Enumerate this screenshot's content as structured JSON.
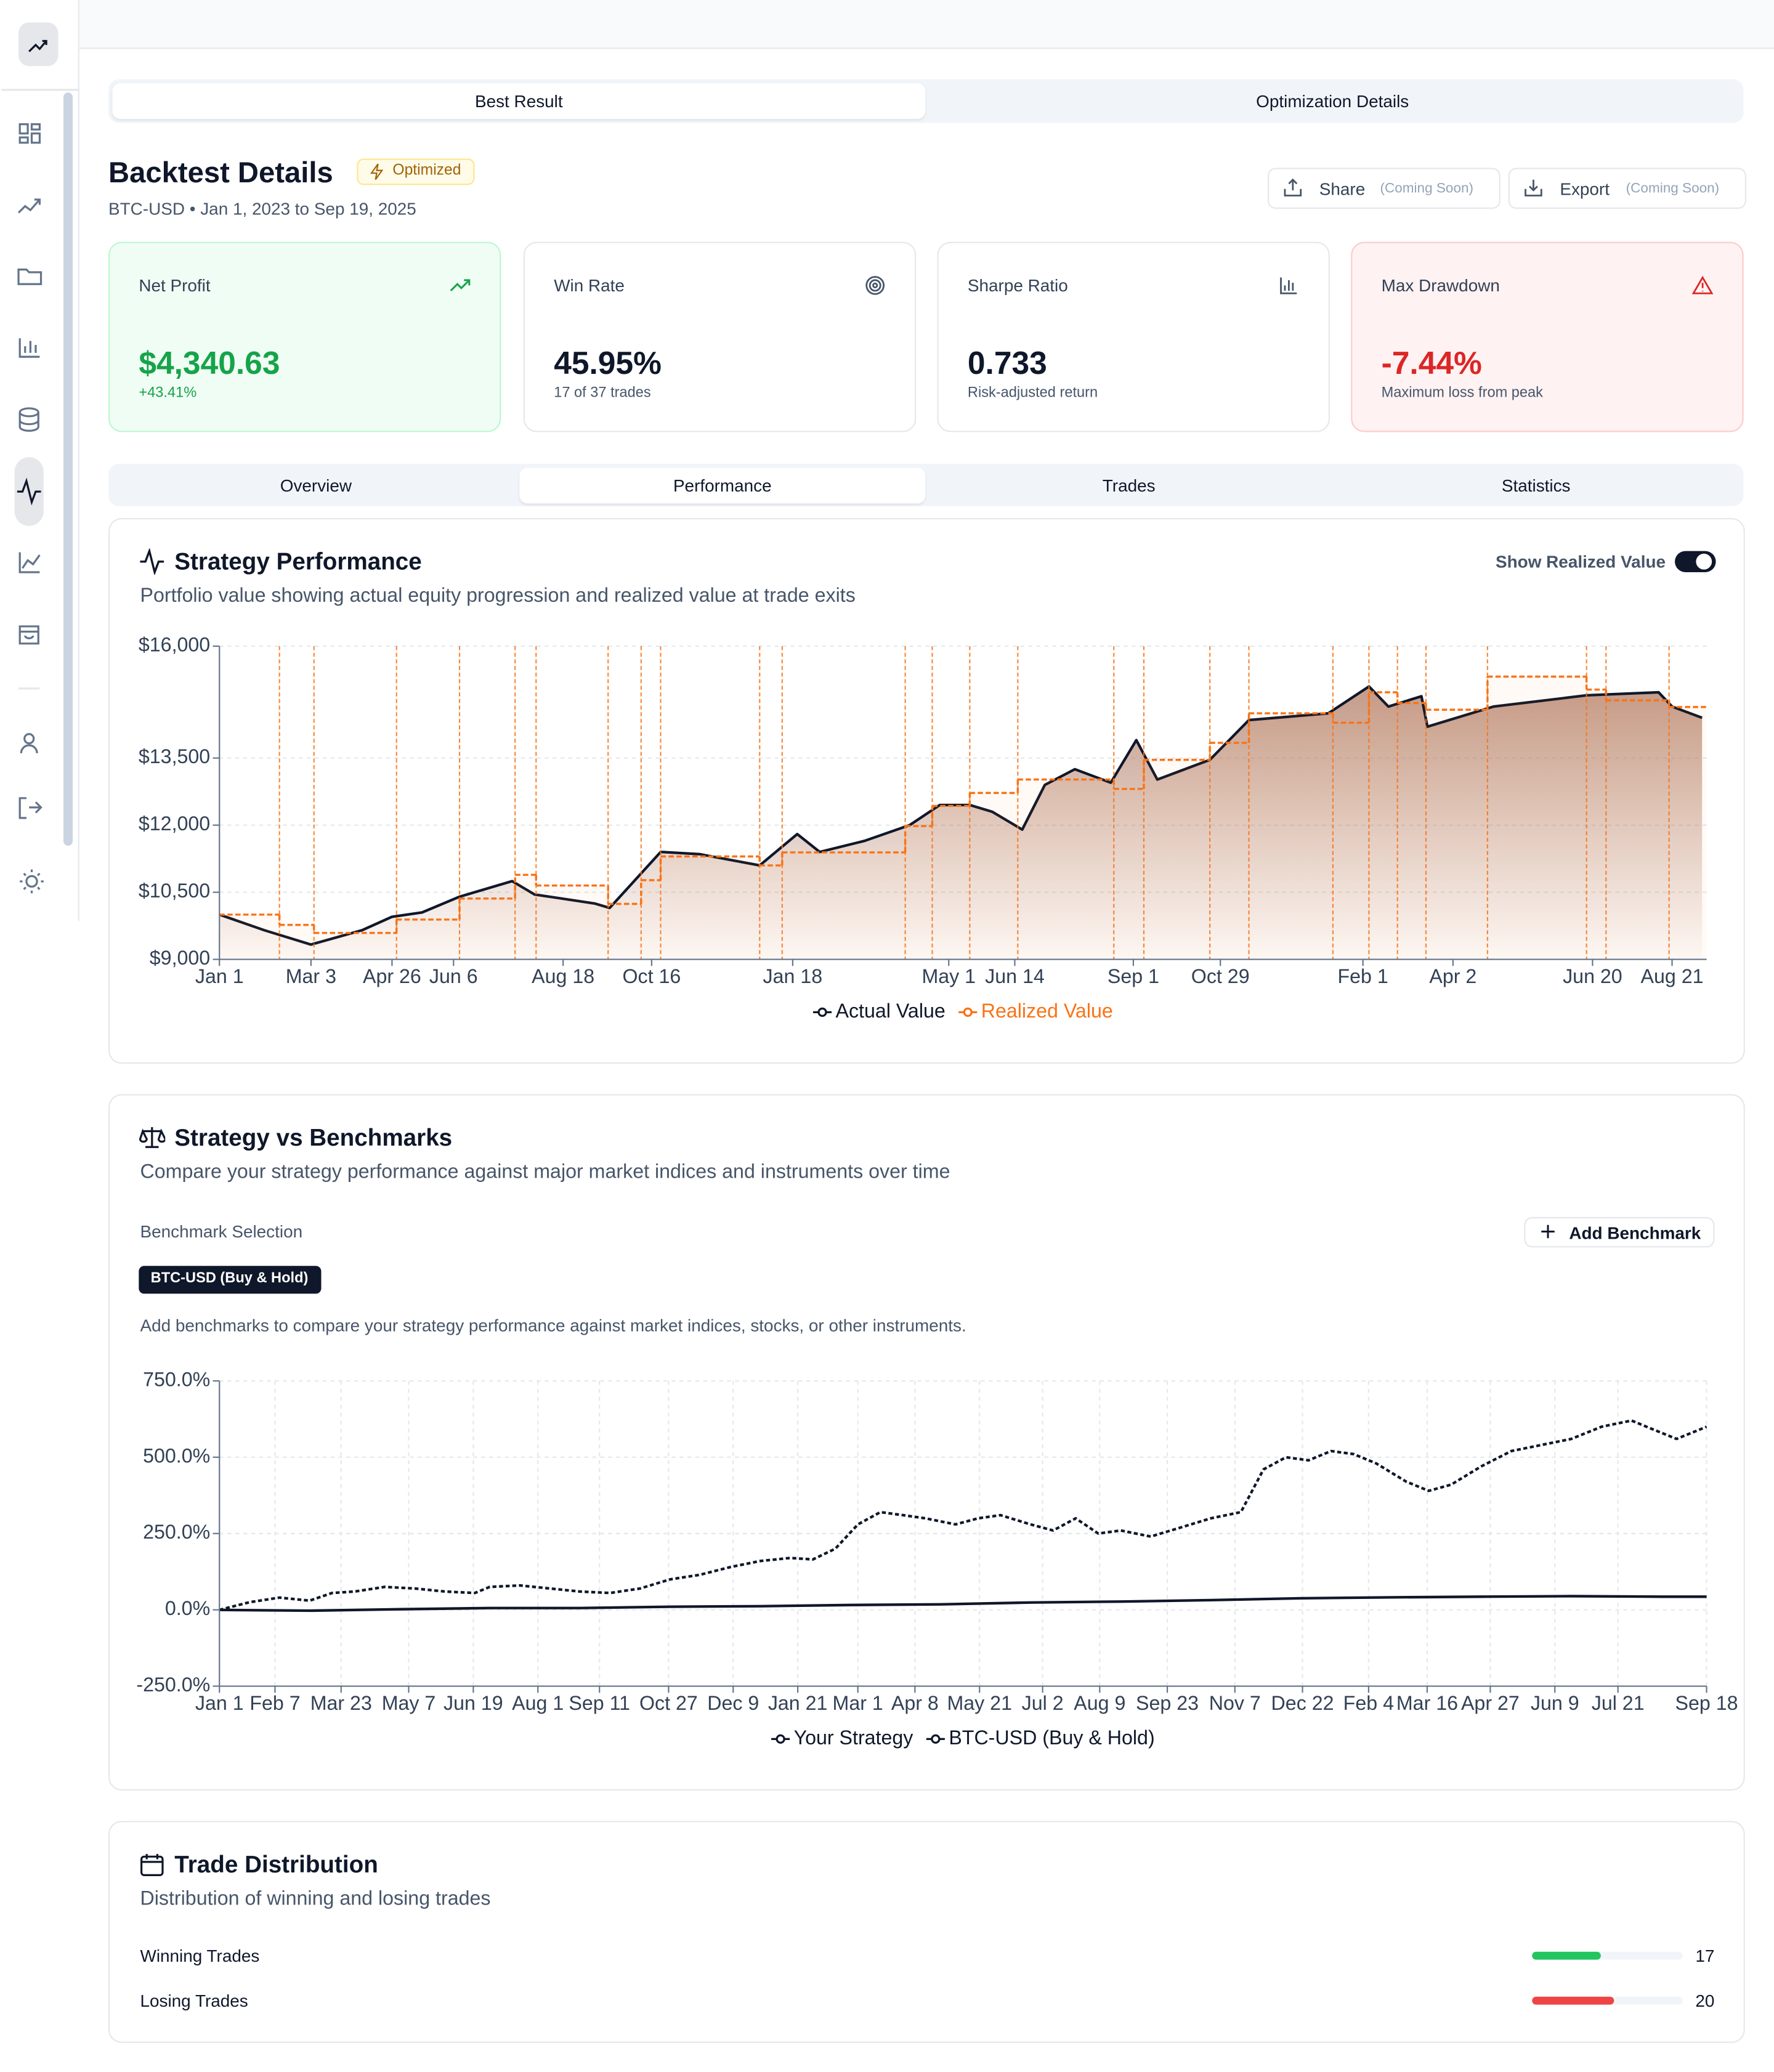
{
  "tabs": [
    "Best Result",
    "Optimization Details"
  ],
  "header": {
    "title": "Backtest Details",
    "badge": "Optimized",
    "subtitle": "BTC-USD • Jan 1, 2023 to Sep 19, 2025",
    "actions": [
      {
        "label": "Share",
        "note": "(Coming Soon)"
      },
      {
        "label": "Export",
        "note": "(Coming Soon)"
      }
    ]
  },
  "cards": [
    {
      "label": "Net Profit",
      "value": "$4,340.63",
      "sub": "+43.41%"
    },
    {
      "label": "Win Rate",
      "value": "45.95%",
      "sub": "17 of 37 trades"
    },
    {
      "label": "Sharpe Ratio",
      "value": "0.733",
      "sub": "Risk-adjusted return"
    },
    {
      "label": "Max Drawdown",
      "value": "-7.44%",
      "sub": "Maximum loss from peak"
    }
  ],
  "view_tabs": [
    "Overview",
    "Performance",
    "Trades",
    "Statistics"
  ],
  "performance": {
    "toggle_label": "Show Realized Value",
    "chart_data": {
      "type": "line",
      "title": "Strategy Performance",
      "subtitle": "Portfolio value showing actual equity progression and realized value at trade exits",
      "xlim": [
        0,
        991
      ],
      "xticks": [
        {
          "value": 0,
          "label": "Jan 1"
        },
        {
          "value": 61,
          "label": "Mar 3"
        },
        {
          "value": 115,
          "label": "Apr 26"
        },
        {
          "value": 156,
          "label": "Jun 6"
        },
        {
          "value": 229,
          "label": "Aug 18"
        },
        {
          "value": 288,
          "label": "Oct 16"
        },
        {
          "value": 382,
          "label": "Jan 18"
        },
        {
          "value": 486,
          "label": "May 1"
        },
        {
          "value": 530,
          "label": "Jun 14"
        },
        {
          "value": 609,
          "label": "Sep 1"
        },
        {
          "value": 667,
          "label": "Oct 29"
        },
        {
          "value": 762,
          "label": "Feb 1"
        },
        {
          "value": 822,
          "label": "Apr 2"
        },
        {
          "value": 915,
          "label": "Jun 20"
        },
        {
          "value": 968,
          "label": "Aug 21"
        }
      ],
      "ylim": [
        9000,
        16000
      ],
      "yticks": [
        {
          "value": 9000,
          "label": "$9,000"
        },
        {
          "value": 10500,
          "label": "$10,500"
        },
        {
          "value": 12000,
          "label": "$12,000"
        },
        {
          "value": 13500,
          "label": "$13,500"
        },
        {
          "value": 16000,
          "label": "$16,000"
        }
      ],
      "grid": true,
      "series": [
        {
          "name": "Actual Value",
          "color": "#0f172a",
          "fill": true,
          "x": [
            0,
            30,
            61,
            95,
            115,
            135,
            160,
            195,
            210,
            250,
            260,
            294,
            320,
            360,
            385,
            400,
            430,
            460,
            480,
            500,
            515,
            535,
            550,
            570,
            594,
            611,
            625,
            660,
            686,
            739,
            766,
            779,
            801,
            805,
            849,
            911,
            959,
            968,
            988
          ],
          "values": [
            10000,
            9650,
            9330,
            9650,
            9950,
            10050,
            10400,
            10750,
            10450,
            10250,
            10150,
            11400,
            11350,
            11100,
            11800,
            11400,
            11650,
            12000,
            12450,
            12450,
            12300,
            11900,
            12900,
            13250,
            12950,
            13900,
            13020,
            13460,
            14350,
            14500,
            15100,
            14650,
            14880,
            14200,
            14650,
            14900,
            14970,
            14650,
            14400
          ]
        },
        {
          "name": "Realized Value",
          "color": "#f97316",
          "step": true,
          "dashed": true,
          "x": [
            0,
            40,
            63,
            118,
            160,
            197,
            211,
            259,
            281,
            294,
            360,
            375,
            457,
            475,
            500,
            532,
            596,
            616,
            660,
            686,
            742,
            766,
            785,
            804,
            845,
            911,
            924,
            966
          ],
          "values": [
            10000,
            9770,
            9590,
            9890,
            10360,
            10890,
            10650,
            10240,
            10770,
            11300,
            11100,
            11390,
            11980,
            12430,
            12720,
            13020,
            12810,
            13460,
            13840,
            14500,
            14290,
            14970,
            14730,
            14580,
            15320,
            15030,
            14790,
            14640
          ]
        }
      ]
    }
  },
  "benchmarks": {
    "selection_label": "Benchmark Selection",
    "add_button": "Add Benchmark",
    "selected": "BTC-USD (Buy & Hold)",
    "hint": "Add benchmarks to compare your strategy performance against market indices, stocks, or other instruments.",
    "chart_data": {
      "type": "line",
      "title": "Strategy vs Benchmarks",
      "subtitle": "Compare your strategy performance against major market indices and instruments over time",
      "xlim": [
        0,
        990
      ],
      "xticks": [
        {
          "value": 0,
          "label": "Jan 1"
        },
        {
          "value": 37,
          "label": "Feb 7"
        },
        {
          "value": 81,
          "label": "Mar 23"
        },
        {
          "value": 126,
          "label": "May 7"
        },
        {
          "value": 169,
          "label": "Jun 19"
        },
        {
          "value": 212,
          "label": "Aug 1"
        },
        {
          "value": 253,
          "label": "Sep 11"
        },
        {
          "value": 299,
          "label": "Oct 27"
        },
        {
          "value": 342,
          "label": "Dec 9"
        },
        {
          "value": 385,
          "label": "Jan 21"
        },
        {
          "value": 425,
          "label": "Mar 1"
        },
        {
          "value": 463,
          "label": "Apr 8"
        },
        {
          "value": 506,
          "label": "May 21"
        },
        {
          "value": 548,
          "label": "Jul 2"
        },
        {
          "value": 586,
          "label": "Aug 9"
        },
        {
          "value": 631,
          "label": "Sep 23"
        },
        {
          "value": 676,
          "label": "Nov 7"
        },
        {
          "value": 721,
          "label": "Dec 22"
        },
        {
          "value": 765,
          "label": "Feb 4"
        },
        {
          "value": 804,
          "label": "Mar 16"
        },
        {
          "value": 846,
          "label": "Apr 27"
        },
        {
          "value": 889,
          "label": "Jun 9"
        },
        {
          "value": 931,
          "label": "Jul 21"
        },
        {
          "value": 990,
          "label": "Sep 18"
        }
      ],
      "ylim": [
        -250,
        750
      ],
      "yticks": [
        {
          "value": -250,
          "label": "-250.0%"
        },
        {
          "value": 0,
          "label": "0.0%"
        },
        {
          "value": 250,
          "label": "250.0%"
        },
        {
          "value": 500,
          "label": "500.0%"
        },
        {
          "value": 750,
          "label": "750.0%"
        }
      ],
      "grid": true,
      "series": [
        {
          "name": "Your Strategy",
          "color": "#0f172a",
          "x": [
            0,
            60,
            120,
            180,
            240,
            300,
            360,
            420,
            480,
            540,
            600,
            660,
            720,
            780,
            840,
            900,
            960,
            990
          ],
          "values": [
            0,
            -3,
            2,
            6,
            6,
            10,
            12,
            16,
            18,
            24,
            27,
            32,
            38,
            41,
            43,
            45,
            43,
            43
          ]
        },
        {
          "name": "BTC-USD (Buy & Hold)",
          "color": "#0f172a",
          "dashed": true,
          "x": [
            0,
            20,
            40,
            60,
            75,
            90,
            110,
            130,
            150,
            170,
            180,
            200,
            220,
            240,
            260,
            280,
            300,
            320,
            340,
            360,
            380,
            395,
            410,
            425,
            440,
            455,
            470,
            490,
            505,
            520,
            540,
            555,
            570,
            585,
            600,
            620,
            640,
            660,
            680,
            695,
            710,
            725,
            740,
            755,
            770,
            790,
            805,
            820,
            840,
            860,
            880,
            900,
            920,
            940,
            955,
            970,
            990
          ],
          "values": [
            0,
            25,
            40,
            30,
            55,
            60,
            75,
            70,
            60,
            55,
            75,
            80,
            70,
            60,
            55,
            70,
            100,
            115,
            140,
            160,
            170,
            165,
            200,
            280,
            320,
            310,
            300,
            280,
            300,
            310,
            280,
            260,
            300,
            250,
            260,
            240,
            270,
            300,
            320,
            460,
            500,
            490,
            520,
            510,
            480,
            420,
            390,
            410,
            470,
            520,
            540,
            560,
            600,
            620,
            590,
            560,
            600
          ]
        }
      ]
    }
  },
  "distribution": {
    "title": "Trade Distribution",
    "subtitle": "Distribution of winning and losing trades",
    "rows": [
      {
        "label": "Winning Trades",
        "value": 17,
        "color": "#22c55e"
      },
      {
        "label": "Losing Trades",
        "value": 20,
        "color": "#ef4444"
      }
    ]
  }
}
